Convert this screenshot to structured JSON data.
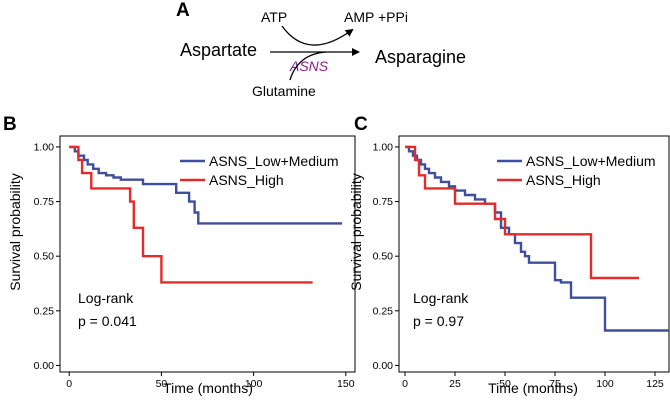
{
  "panel_a": {
    "label": "A",
    "substrate": "Aspartate",
    "product": "Asparagine",
    "cofactor_in": "ATP",
    "cofactor_out": "AMP +PPi",
    "enzyme": "ASNS",
    "donor": "Glutamine",
    "enzyme_color": "#8b1a8b"
  },
  "chart_data": [
    {
      "panel_label": "B",
      "type": "line",
      "subtype": "kaplan-meier",
      "xlabel": "Time (months)",
      "ylabel": "Survival probability",
      "xlim": [
        -5,
        155
      ],
      "ylim": [
        -0.03,
        1.05
      ],
      "xticks": [
        0,
        50,
        100,
        150
      ],
      "yticks": [
        0.0,
        0.25,
        0.5,
        0.75,
        1.0
      ],
      "ytick_labels": [
        "0.00",
        "0.25",
        "0.50",
        "0.75",
        "1.00"
      ],
      "series": [
        {
          "name": "ASNS_Low+Medium",
          "color": "#3f4f9c",
          "x": [
            0,
            3,
            5,
            8,
            10,
            13,
            16,
            20,
            24,
            28,
            40,
            58,
            65,
            68,
            70,
            148
          ],
          "y": [
            1.0,
            0.98,
            0.96,
            0.94,
            0.92,
            0.9,
            0.88,
            0.87,
            0.86,
            0.85,
            0.83,
            0.79,
            0.75,
            0.7,
            0.65,
            0.65
          ]
        },
        {
          "name": "ASNS_High",
          "color": "#e32b2b",
          "x": [
            0,
            5,
            7,
            12,
            33,
            35,
            40,
            50,
            132
          ],
          "y": [
            1.0,
            0.94,
            0.88,
            0.81,
            0.75,
            0.63,
            0.5,
            0.38,
            0.38
          ]
        }
      ],
      "annotation": {
        "test": "Log-rank",
        "pvalue": "p = 0.041"
      }
    },
    {
      "panel_label": "C",
      "type": "line",
      "subtype": "kaplan-meier",
      "xlabel": "Time (months)",
      "ylabel": "Survival probability",
      "xlim": [
        -3,
        132
      ],
      "ylim": [
        -0.03,
        1.05
      ],
      "xticks": [
        0,
        25,
        50,
        75,
        100,
        125
      ],
      "yticks": [
        0.0,
        0.25,
        0.5,
        0.75,
        1.0
      ],
      "ytick_labels": [
        "0.00",
        "0.25",
        "0.50",
        "0.75",
        "1.00"
      ],
      "series": [
        {
          "name": "ASNS_Low+Medium",
          "color": "#3f4f9c",
          "x": [
            0,
            2,
            4,
            6,
            8,
            10,
            12,
            15,
            18,
            22,
            25,
            30,
            35,
            40,
            45,
            48,
            52,
            55,
            58,
            60,
            62,
            75,
            78,
            83,
            87,
            100,
            132
          ],
          "y": [
            1.0,
            0.98,
            0.96,
            0.94,
            0.92,
            0.9,
            0.88,
            0.86,
            0.84,
            0.82,
            0.8,
            0.78,
            0.76,
            0.74,
            0.7,
            0.63,
            0.6,
            0.56,
            0.52,
            0.5,
            0.47,
            0.39,
            0.38,
            0.31,
            0.31,
            0.16,
            0.16
          ]
        },
        {
          "name": "ASNS_High",
          "color": "#e32b2b",
          "x": [
            0,
            5,
            7,
            10,
            25,
            45,
            50,
            93,
            117
          ],
          "y": [
            1.0,
            0.94,
            0.87,
            0.81,
            0.74,
            0.67,
            0.6,
            0.4,
            0.4
          ]
        }
      ],
      "annotation": {
        "test": "Log-rank",
        "pvalue": "p = 0.97"
      }
    }
  ]
}
